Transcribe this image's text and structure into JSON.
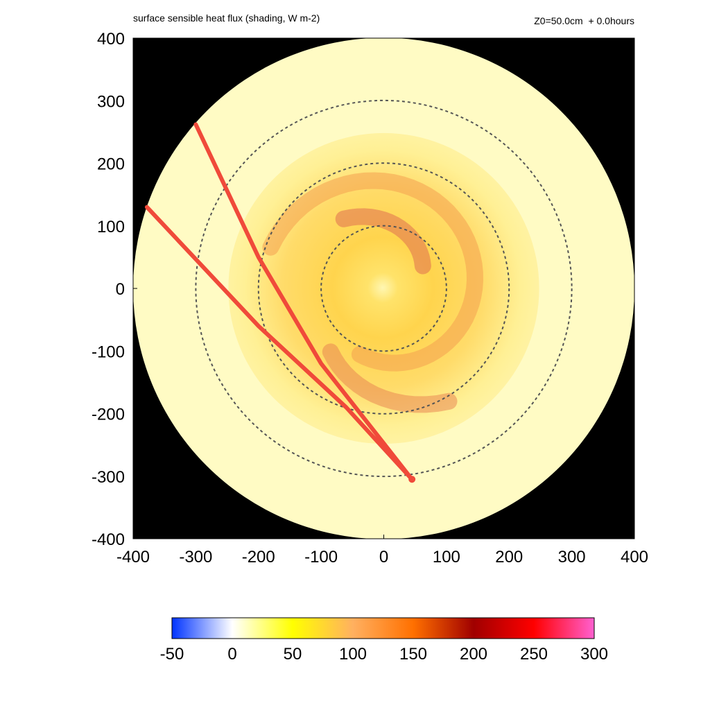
{
  "chart_data": {
    "type": "heatmap",
    "title": "surface sensible heat flux (shading, W m-2)",
    "subtitle": "Z0=50.0cm  + 0.0hours",
    "xlim": [
      -400,
      400
    ],
    "ylim": [
      -400,
      400
    ],
    "x_ticks": [
      "-400",
      "-300",
      "-200",
      "-100",
      "0",
      "100",
      "200",
      "300",
      "400"
    ],
    "y_ticks": [
      "400",
      "300",
      "200",
      "100",
      "0",
      "-100",
      "-200",
      "-300",
      "-400"
    ],
    "domain_radius": 400,
    "range_rings": [
      100,
      200,
      300
    ],
    "track_points": [
      [
        -300,
        262
      ],
      [
        -200,
        50
      ],
      [
        -100,
        -120
      ],
      [
        45,
        -305
      ],
      [
        -60,
        -190
      ],
      [
        -200,
        -60
      ],
      [
        -378,
        130
      ]
    ],
    "colorbar": {
      "ticks": [
        "-50",
        "0",
        "50",
        "100",
        "150",
        "200",
        "250",
        "300"
      ],
      "min": -50,
      "max": 300,
      "stops": [
        {
          "value": -50,
          "color": "#0033ff"
        },
        {
          "value": 0,
          "color": "#ffffff"
        },
        {
          "value": 50,
          "color": "#ffff00"
        },
        {
          "value": 100,
          "color": "#ffb060"
        },
        {
          "value": 150,
          "color": "#ff7000"
        },
        {
          "value": 200,
          "color": "#a00000"
        },
        {
          "value": 250,
          "color": "#ff0000"
        },
        {
          "value": 300,
          "color": "#ff60d0"
        }
      ]
    },
    "colors": {
      "background": "#000000",
      "field_base": "#fffbc4",
      "track": "#f04a3a",
      "rings": "#555555"
    }
  }
}
